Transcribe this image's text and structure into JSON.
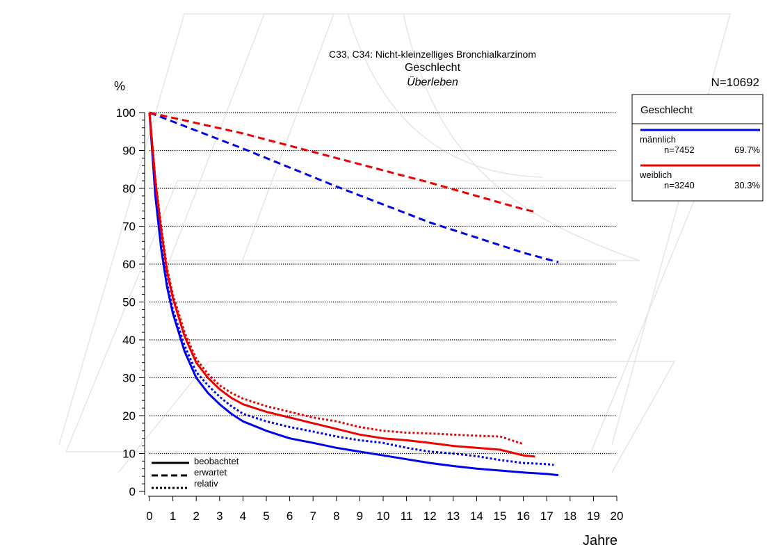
{
  "chart_data": {
    "type": "line",
    "title": "C33, C34: Nicht-kleinzelliges Bronchialkarzinom",
    "subtitle": "Geschlecht",
    "subtitle2": "Überleben",
    "ylabel": "%",
    "xlabel": "Jahre",
    "n_total": "N=10692",
    "xlim": [
      0,
      20
    ],
    "ylim": [
      0,
      100
    ],
    "x_ticks": [
      "0",
      "1",
      "2",
      "3",
      "4",
      "5",
      "6",
      "7",
      "8",
      "9",
      "10",
      "11",
      "12",
      "13",
      "14",
      "15",
      "16",
      "17",
      "18",
      "19",
      "20"
    ],
    "y_ticks": [
      "0",
      "10",
      "20",
      "30",
      "40",
      "50",
      "60",
      "70",
      "80",
      "90",
      "100"
    ],
    "grid": "horizontal dotted",
    "colors": {
      "maennlich": "#0000ee",
      "weiblich": "#ee0000"
    },
    "legend": {
      "title": "Geschlecht",
      "placement": "top-right",
      "entries": [
        {
          "label": "männlich",
          "n": "n=7452",
          "pct": "69.7%",
          "color": "#0000ee"
        },
        {
          "label": "weiblich",
          "n": "n=3240",
          "pct": "30.3%",
          "color": "#ee0000"
        }
      ]
    },
    "style_legend": {
      "placement": "bottom-left",
      "entries": [
        {
          "label": "beobachtet",
          "dash": "solid"
        },
        {
          "label": "erwartet",
          "dash": "dashed"
        },
        {
          "label": "relativ",
          "dash": "dotted"
        }
      ]
    },
    "series": [
      {
        "name": "männlich",
        "kind": "beobachtet",
        "color": "#0000ee",
        "dash": "solid",
        "x": [
          0,
          0.25,
          0.5,
          0.75,
          1,
          1.5,
          2,
          2.5,
          3,
          3.5,
          4,
          5,
          6,
          7,
          8,
          9,
          10,
          11,
          12,
          13,
          14,
          15,
          16,
          17,
          17.5
        ],
        "y": [
          100,
          78,
          64,
          54,
          47,
          37,
          30,
          26,
          23,
          20.5,
          18.5,
          16,
          14,
          12.8,
          11.5,
          10.5,
          9.5,
          8.5,
          7.5,
          6.7,
          6,
          5.5,
          5,
          4.6,
          4.3
        ]
      },
      {
        "name": "männlich",
        "kind": "relativ",
        "color": "#0000ee",
        "dash": "dotted",
        "x": [
          0,
          0.25,
          0.5,
          0.75,
          1,
          1.5,
          2,
          2.5,
          3,
          3.5,
          4,
          5,
          6,
          7,
          8,
          9,
          10,
          11,
          12,
          13,
          14,
          15,
          16,
          17,
          17.3
        ],
        "y": [
          100,
          78.5,
          65,
          55,
          48,
          38.5,
          31.5,
          28,
          25,
          22.5,
          20.5,
          18.5,
          17,
          15.8,
          14.5,
          13.5,
          12.8,
          11.5,
          10.5,
          10,
          9.3,
          8.3,
          7.5,
          7.2,
          7
        ]
      },
      {
        "name": "männlich",
        "kind": "erwartet",
        "color": "#0000ee",
        "dash": "dashed",
        "x": [
          0,
          4,
          8,
          12,
          16,
          17.5
        ],
        "y": [
          100,
          90.5,
          80.5,
          71,
          63,
          60.5
        ]
      },
      {
        "name": "weiblich",
        "kind": "beobachtet",
        "color": "#ee0000",
        "dash": "solid",
        "x": [
          0,
          0.25,
          0.5,
          0.75,
          1,
          1.5,
          2,
          2.5,
          3,
          3.5,
          4,
          5,
          6,
          7,
          8,
          9,
          10,
          11,
          12,
          13,
          14,
          15,
          16,
          16.5
        ],
        "y": [
          100,
          82,
          69,
          58,
          51,
          41,
          34,
          30,
          27,
          24.7,
          23,
          21,
          19.5,
          18,
          16.5,
          15,
          14,
          13.5,
          12.8,
          12,
          11.5,
          11,
          9.5,
          9.2
        ]
      },
      {
        "name": "weiblich",
        "kind": "relativ",
        "color": "#ee0000",
        "dash": "dotted",
        "x": [
          0,
          0.25,
          0.5,
          0.75,
          1,
          1.5,
          2,
          2.5,
          3,
          3.5,
          4,
          5,
          6,
          7,
          8,
          9,
          10,
          11,
          12,
          13,
          14,
          15,
          16
        ],
        "y": [
          100,
          82.5,
          70,
          59,
          52,
          42,
          35,
          31,
          28,
          26,
          24.5,
          22.5,
          21,
          19.5,
          18.5,
          17,
          16,
          15.5,
          15.3,
          15,
          14.7,
          14.5,
          12.5
        ]
      },
      {
        "name": "weiblich",
        "kind": "erwartet",
        "color": "#ee0000",
        "dash": "dashed",
        "x": [
          0,
          4,
          8,
          12,
          16,
          16.5
        ],
        "y": [
          100,
          94.5,
          88,
          81.5,
          74.5,
          73.8
        ]
      }
    ]
  }
}
